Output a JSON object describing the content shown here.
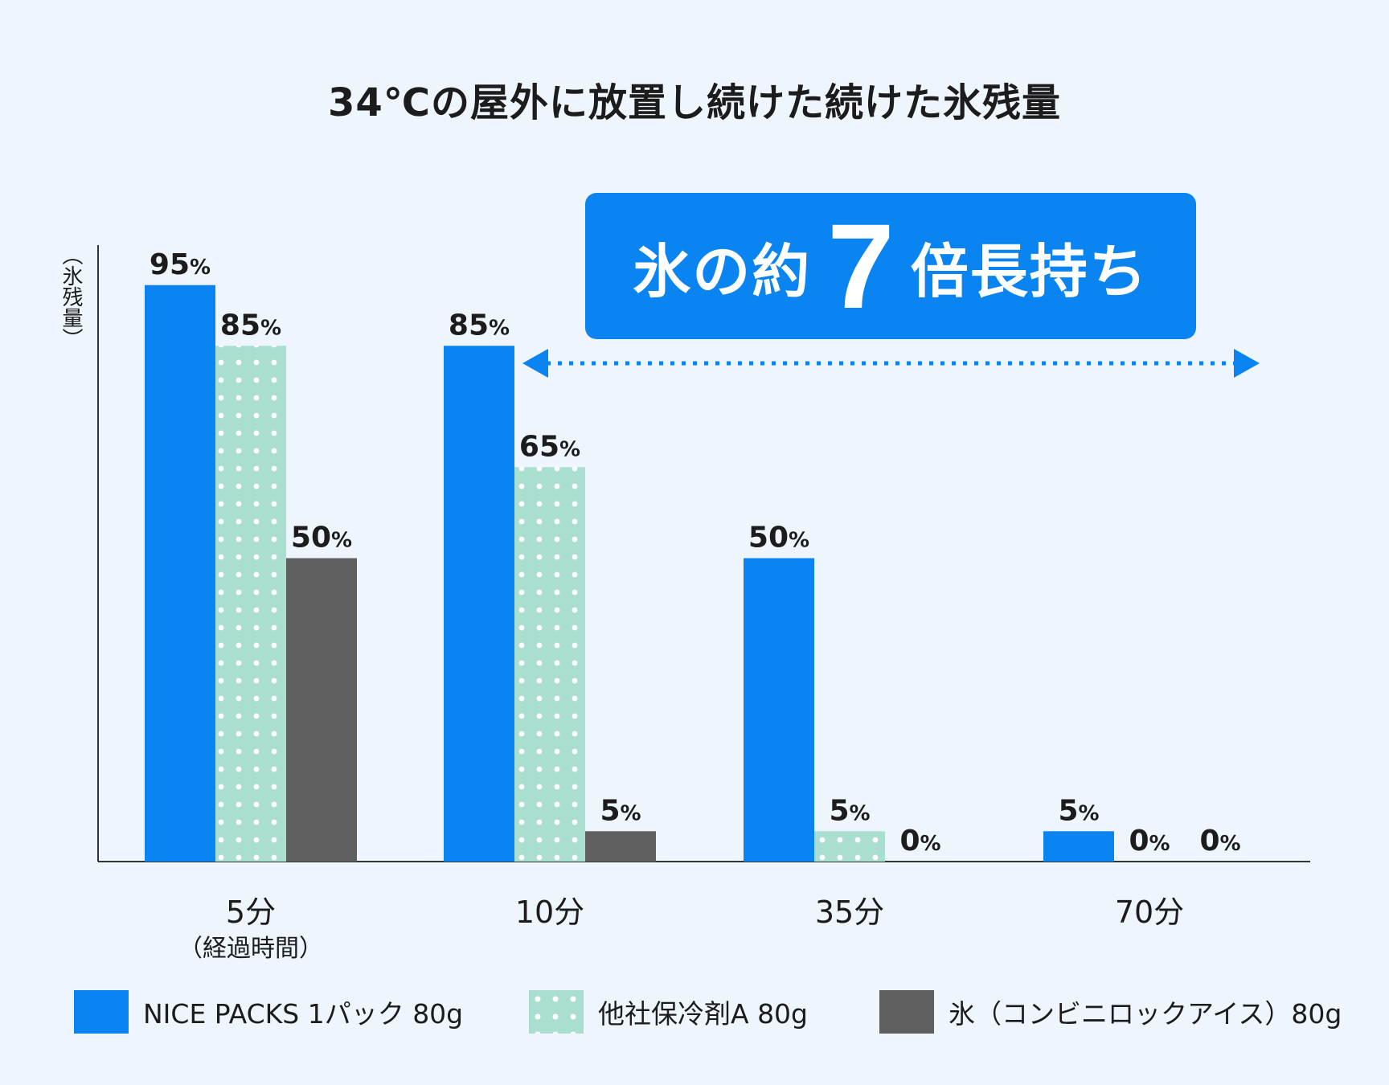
{
  "chart_data": {
    "type": "bar",
    "title": "34℃の屋外に放置し続けた続けた氷残量",
    "ylabel": "（氷残量）",
    "xlabel": "（経過時間）",
    "ylim": [
      0,
      100
    ],
    "categories": [
      "5分",
      "10分",
      "35分",
      "70分"
    ],
    "series": [
      {
        "name": "NICE PACKS 1パック 80g",
        "color": "#0a84f0",
        "values": [
          95,
          85,
          50,
          5
        ]
      },
      {
        "name": "他社保冷剤A 80g",
        "color": "#a9ded1",
        "pattern": "dots",
        "values": [
          85,
          65,
          5,
          0
        ]
      },
      {
        "name": "氷（コンビニロックアイス）80g",
        "color": "#5f5f5f",
        "values": [
          50,
          5,
          0,
          0
        ]
      }
    ],
    "value_suffix": "%",
    "annotation": {
      "prefix": "氷の約",
      "number": "7",
      "suffix": "倍長持ち",
      "color": "#0a84f0"
    }
  }
}
